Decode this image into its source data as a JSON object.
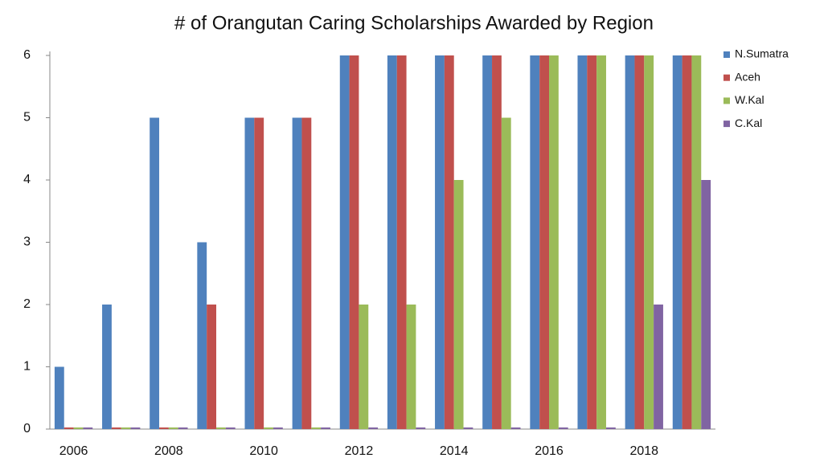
{
  "chart_data": {
    "type": "bar",
    "title": "# of Orangutan Caring Scholarships Awarded by Region",
    "categories": [
      "2006",
      null,
      "2008",
      null,
      "2010",
      null,
      "2012",
      null,
      "2014",
      null,
      "2016",
      null,
      "2018",
      null
    ],
    "series": [
      {
        "name": "N.Sumatra",
        "color": "#4f81bd",
        "values": [
          1,
          2,
          5,
          3,
          5,
          5,
          6,
          6,
          6,
          6,
          6,
          6,
          6,
          6
        ]
      },
      {
        "name": "Aceh",
        "color": "#c0504d",
        "values": [
          0,
          0,
          0,
          2,
          5,
          5,
          6,
          6,
          6,
          6,
          6,
          6,
          6,
          6
        ]
      },
      {
        "name": "W.Kal",
        "color": "#9bbb59",
        "values": [
          0,
          0,
          0,
          0,
          0,
          0,
          2,
          2,
          4,
          5,
          6,
          6,
          6,
          6
        ]
      },
      {
        "name": "C.Kal",
        "color": "#8064a2",
        "values": [
          0,
          0,
          0,
          0,
          0,
          0,
          0,
          0,
          0,
          0,
          0,
          0,
          2,
          4
        ]
      }
    ],
    "ylim": [
      0,
      6
    ],
    "yticks": [
      0,
      1,
      2,
      3,
      4,
      5,
      6
    ],
    "legend": "right"
  }
}
